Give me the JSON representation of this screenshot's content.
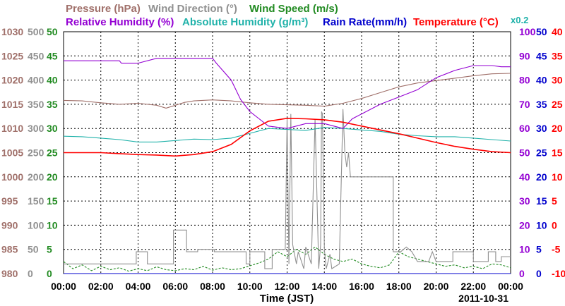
{
  "chart_data": {
    "type": "line",
    "date_label": "2011-10-31",
    "xlabel": "Time (JST)",
    "x_ticks": [
      "00:00",
      "02:00",
      "04:00",
      "06:00",
      "08:00",
      "10:00",
      "12:00",
      "14:00",
      "16:00",
      "18:00",
      "20:00",
      "22:00",
      "00:00"
    ],
    "xlim": [
      0,
      24
    ],
    "grid": true,
    "headers": {
      "row1": [
        {
          "text": "Pressure (hPa)",
          "color": "#a0706a"
        },
        {
          "text": "Wind Direction (°)",
          "color": "#909090"
        },
        {
          "text": "Wind Speed (m/s)",
          "color": "#228b22"
        }
      ],
      "row2": [
        {
          "text": "Relative Humidity (%)",
          "color": "#9400d3"
        },
        {
          "text": "Absolute Humidity (g/m³)",
          "color": "#20b2aa"
        },
        {
          "text": "Rain Rate(mm/h)",
          "color": "#0000cd"
        },
        {
          "text": "Temperature (°C)",
          "color": "#ff0000"
        }
      ],
      "scale_note": {
        "text": "x0.2",
        "color": "#20b2aa"
      }
    },
    "axes": [
      {
        "name": "pressure",
        "side": "left",
        "color": "#a0706a",
        "ticks": [
          "1030",
          "1025",
          "1020",
          "1015",
          "1010",
          "1005",
          "1000",
          "995",
          "990",
          "985",
          "980"
        ],
        "range": [
          980,
          1030
        ]
      },
      {
        "name": "wind_direction",
        "side": "left",
        "color": "#909090",
        "ticks": [
          "500",
          "450",
          "400",
          "350",
          "300",
          "250",
          "200",
          "150",
          "100",
          "50",
          "0"
        ],
        "range": [
          0,
          500
        ]
      },
      {
        "name": "wind_speed",
        "side": "left",
        "color": "#228b22",
        "ticks": [
          "50",
          "45",
          "40",
          "35",
          "30",
          "25",
          "20",
          "15",
          "10",
          "5",
          "0"
        ],
        "range": [
          0,
          50
        ]
      },
      {
        "name": "relative_humidity",
        "side": "right",
        "color": "#9400d3",
        "ticks": [
          "100",
          "90",
          "80",
          "70",
          "60",
          "50",
          "40",
          "30",
          "20",
          "10",
          "0"
        ],
        "range": [
          0,
          100
        ]
      },
      {
        "name": "absolute_humidity_rain",
        "side": "right",
        "color": "#0000cd",
        "ticks": [
          "50",
          "45",
          "40",
          "35",
          "30",
          "25",
          "20",
          "15",
          "10",
          "5",
          "0"
        ],
        "range": [
          0,
          50
        ]
      },
      {
        "name": "temperature",
        "side": "right",
        "color": "#ff0000",
        "ticks": [
          "40",
          "35",
          "30",
          "25",
          "20",
          "15",
          "10",
          "5",
          "0",
          "-5",
          "-10"
        ],
        "range": [
          -10,
          40
        ]
      }
    ],
    "series": [
      {
        "name": "Pressure (hPa)",
        "color": "#a0706a",
        "axis": "pressure",
        "x": [
          0,
          1,
          2,
          3,
          4,
          5,
          5.5,
          6,
          6.5,
          7,
          8,
          9,
          10,
          11,
          12,
          13,
          14,
          15,
          16,
          17,
          18,
          19,
          20,
          21,
          22,
          23,
          24
        ],
        "y": [
          1015.8,
          1015.7,
          1015.3,
          1015.0,
          1015.2,
          1014.8,
          1014.2,
          1014.8,
          1015.4,
          1015.7,
          1015.9,
          1015.7,
          1015.3,
          1015.0,
          1014.9,
          1014.8,
          1014.6,
          1015.2,
          1016.2,
          1017.4,
          1018.6,
          1019.4,
          1019.9,
          1020.4,
          1020.9,
          1021.3,
          1021.4
        ]
      },
      {
        "name": "Relative Humidity (%)",
        "color": "#9400d3",
        "axis": "relative_humidity",
        "x": [
          0,
          1,
          2,
          3,
          3.1,
          4,
          5,
          6,
          7,
          8,
          8.2,
          9,
          9.5,
          10,
          10.5,
          11,
          12,
          13,
          14,
          15,
          15.5,
          16,
          17,
          18,
          19,
          20,
          21,
          22,
          23,
          23.5,
          24
        ],
        "y": [
          88,
          88,
          88,
          88,
          87,
          87,
          89,
          89,
          89,
          89,
          87,
          80,
          72,
          67,
          64,
          61,
          60,
          62,
          62,
          60,
          64,
          66,
          70,
          73,
          76,
          81,
          84,
          86,
          86,
          85.5,
          85.5
        ]
      },
      {
        "name": "Absolute Humidity (g/m³)",
        "color": "#20b2aa",
        "axis": "absolute_humidity_rain",
        "x": [
          0,
          1,
          2,
          3,
          4,
          5,
          6,
          7,
          8,
          9,
          10,
          11,
          12,
          13,
          14,
          15,
          16,
          17,
          18,
          19,
          20,
          21,
          22,
          23,
          24
        ],
        "y": [
          28.4,
          28.3,
          28.0,
          27.7,
          27.2,
          27.2,
          27.5,
          27.8,
          27.7,
          28.0,
          29.0,
          30.0,
          29.8,
          29.6,
          30.2,
          30.0,
          29.7,
          29.4,
          28.8,
          28.5,
          28.3,
          28.3,
          28.0,
          27.7,
          27.4
        ]
      },
      {
        "name": "Rain Rate(mm/h)",
        "color": "#0000cd",
        "axis": "absolute_humidity_rain",
        "x": [
          0,
          24
        ],
        "y": [
          0,
          0
        ]
      },
      {
        "name": "Temperature (°C)",
        "color": "#ff0000",
        "axis": "temperature",
        "x": [
          0,
          1,
          2,
          3,
          4,
          5,
          6,
          7,
          8,
          9,
          10,
          11,
          12,
          13,
          14,
          15,
          16,
          17,
          18,
          19,
          20,
          21,
          22,
          23,
          24
        ],
        "y": [
          15.0,
          15.0,
          15.0,
          14.8,
          14.6,
          14.5,
          14.3,
          14.6,
          15.2,
          16.7,
          19.5,
          21.5,
          22.1,
          22.0,
          21.8,
          21.3,
          20.5,
          19.7,
          18.9,
          18.0,
          17.1,
          16.3,
          15.7,
          15.2,
          15.0
        ]
      },
      {
        "name": "Wind Direction (°)",
        "color": "#909090",
        "axis": "wind_direction",
        "x": [
          0,
          3.9,
          3.9,
          4.5,
          4.5,
          5.9,
          5.9,
          6.6,
          6.6,
          7.2,
          7.2,
          8.1,
          8.1,
          9.8,
          9.8,
          10.0,
          10.0,
          10.8,
          10.8,
          11.2,
          11.2,
          11.9,
          12.0,
          12.1,
          12.2,
          12.3,
          12.5,
          12.6,
          12.9,
          13.0,
          13.3,
          13.5,
          13.7,
          13.8,
          13.85,
          13.9,
          14.0,
          14.1,
          14.3,
          14.4,
          14.8,
          14.9,
          15.0,
          15.1,
          15.2,
          15.3,
          15.4,
          15.6,
          15.8,
          17.7,
          17.7,
          18.1,
          18.4,
          18.7,
          19.0,
          19.6,
          19.8,
          20.0,
          20.3,
          20.9,
          20.9,
          22.0,
          22.0,
          22.8,
          22.8,
          23.2,
          23.2,
          23.5,
          23.5,
          24
        ],
        "y": [
          20,
          20,
          45,
          45,
          20,
          20,
          90,
          90,
          45,
          45,
          50,
          50,
          45,
          45,
          20,
          20,
          45,
          45,
          10,
          10,
          50,
          50,
          320,
          20,
          330,
          60,
          20,
          45,
          10,
          55,
          20,
          320,
          10,
          60,
          335,
          330,
          50,
          10,
          40,
          10,
          20,
          180,
          340,
          250,
          220,
          250,
          200,
          200,
          200,
          200,
          45,
          45,
          55,
          45,
          25,
          25,
          45,
          25,
          25,
          25,
          45,
          45,
          25,
          25,
          45,
          45,
          25,
          25,
          35,
          35
        ]
      },
      {
        "name": "Wind Speed (m/s)",
        "color": "#228b22",
        "axis": "wind_speed",
        "x": [
          0,
          0.5,
          1,
          1.5,
          2,
          2.5,
          3,
          3.5,
          4,
          4.5,
          5,
          5.5,
          6,
          6.5,
          7,
          7.5,
          8,
          8.5,
          9,
          9.5,
          10,
          10.5,
          11,
          11.5,
          12,
          12.5,
          13,
          13.5,
          14,
          14.5,
          15,
          15.5,
          16,
          16.5,
          17,
          17.5,
          18,
          18.5,
          19,
          19.5,
          20,
          20.5,
          21,
          21.5,
          22,
          22.5,
          23,
          23.5,
          24
        ],
        "y": [
          2.5,
          1.0,
          1.8,
          0.6,
          1.5,
          0.8,
          1.2,
          0.5,
          1.0,
          0.6,
          1.4,
          0.8,
          0.6,
          1.0,
          0.8,
          1.5,
          0.7,
          1.2,
          0.8,
          1.0,
          1.6,
          2.2,
          3.0,
          4.5,
          3.5,
          5.0,
          4.0,
          5.5,
          4.0,
          3.0,
          2.5,
          3.0,
          2.0,
          1.5,
          1.2,
          1.8,
          4.5,
          3.5,
          3.0,
          2.5,
          2.0,
          1.5,
          1.8,
          1.2,
          1.5,
          1.0,
          2.0,
          1.8,
          1.2
        ]
      }
    ]
  }
}
